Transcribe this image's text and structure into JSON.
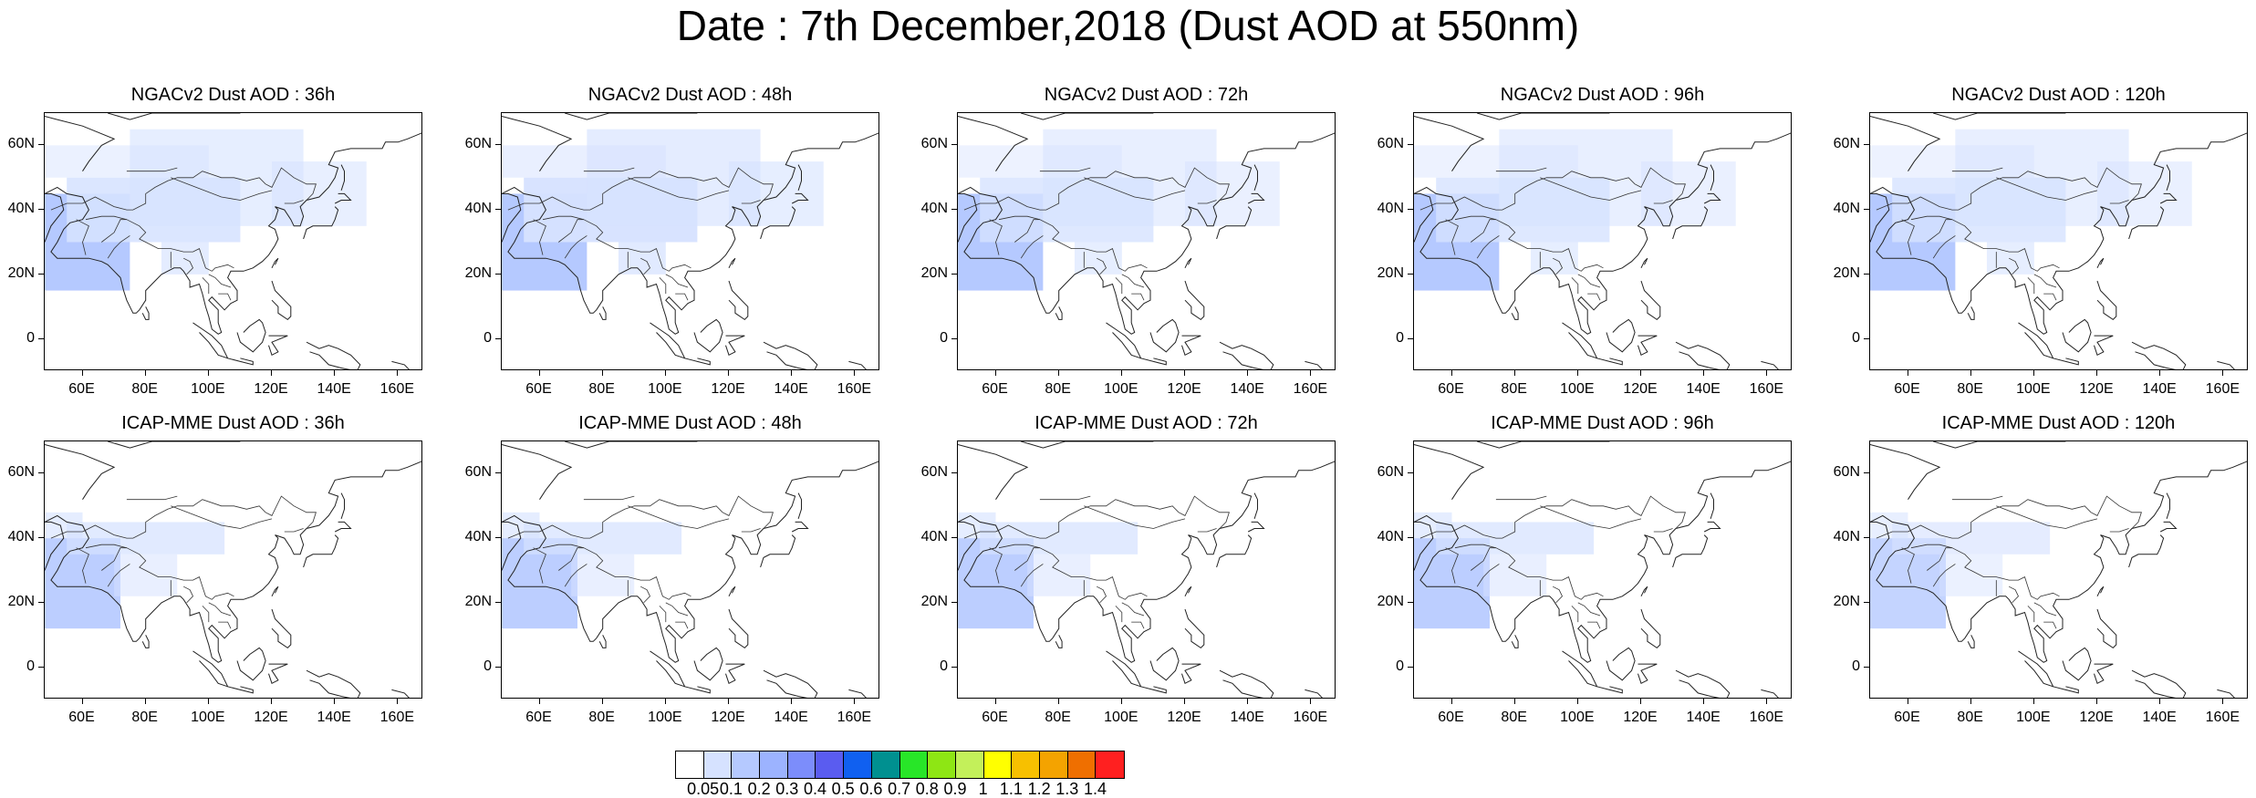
{
  "title": "Date : 7th December,2018 (Dust AOD at 550nm)",
  "panels": [
    {
      "title": "NGACv2 Dust AOD : 36h",
      "level": 0.22
    },
    {
      "title": "NGACv2 Dust AOD : 48h",
      "level": 0.24
    },
    {
      "title": "NGACv2 Dust AOD : 72h",
      "level": 0.2
    },
    {
      "title": "NGACv2 Dust AOD : 96h",
      "level": 0.2
    },
    {
      "title": "NGACv2 Dust AOD : 120h",
      "level": 0.2
    },
    {
      "title": "ICAP-MME Dust AOD : 36h",
      "level": 0.18
    },
    {
      "title": "ICAP-MME Dust AOD : 48h",
      "level": 0.18
    },
    {
      "title": "ICAP-MME Dust AOD : 72h",
      "level": 0.18
    },
    {
      "title": "ICAP-MME Dust AOD : 96h",
      "level": 0.18
    },
    {
      "title": "ICAP-MME Dust AOD : 120h",
      "level": 0.16
    }
  ],
  "axes": {
    "lat_labels": [
      "60N",
      "40N",
      "20N",
      "0"
    ],
    "lon_labels": [
      "60E",
      "80E",
      "100E",
      "120E",
      "140E",
      "160E"
    ]
  },
  "colorbar": {
    "labels": [
      "0.05",
      "0.1",
      "0.2",
      "0.3",
      "0.4",
      "0.5",
      "0.6",
      "0.7",
      "0.8",
      "0.9",
      "1",
      "1.1",
      "1.2",
      "1.3",
      "1.4"
    ],
    "colors": [
      "#ffffff",
      "#d6e2ff",
      "#b5c9ff",
      "#9cb3ff",
      "#7c8dfb",
      "#5a5cf0",
      "#1060f0",
      "#009090",
      "#28e628",
      "#8ee614",
      "#c3f05a",
      "#ffff00",
      "#f7c000",
      "#f4a300",
      "#ef6f00",
      "#ff2020"
    ]
  }
}
